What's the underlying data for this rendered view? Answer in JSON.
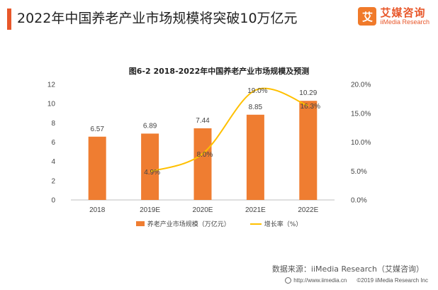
{
  "header": {
    "title": "2022年中国养老产业市场规模将突破10万亿元",
    "logo_mark": "艾",
    "logo_cn": "艾媒咨询",
    "logo_en": "iiMedia Research"
  },
  "chart_data": {
    "type": "bar",
    "title": "图6-2 2018-2022年中国养老产业市场规模及预测",
    "categories": [
      "2018",
      "2019E",
      "2020E",
      "2021E",
      "2022E"
    ],
    "series": [
      {
        "name": "养老产业市场规模（万亿元）",
        "type": "bar",
        "axis": "left",
        "values": [
          6.57,
          6.89,
          7.44,
          8.85,
          10.29
        ],
        "color": "#ef7d31"
      },
      {
        "name": "增长率（%）",
        "type": "line",
        "axis": "right",
        "values": [
          null,
          4.9,
          8.0,
          19.0,
          16.3
        ],
        "labels": [
          "",
          "4.9%",
          "8.0%",
          "19.0%",
          "16.3%"
        ],
        "color": "#ffc000"
      }
    ],
    "left_axis": {
      "min": 0,
      "max": 12,
      "ticks": [
        "0",
        "2",
        "4",
        "6",
        "8",
        "10",
        "12"
      ]
    },
    "right_axis": {
      "min": 0,
      "max": 20,
      "ticks": [
        "0.0%",
        "5.0%",
        "10.0%",
        "15.0%",
        "20.0%"
      ]
    },
    "bar_labels": [
      "6.57",
      "6.89",
      "7.44",
      "8.85",
      "10.29"
    ],
    "grid": false,
    "legend_position": "bottom"
  },
  "source": "数据来源：iiMedia Research（艾媒咨询）",
  "footer": {
    "url": "http://www.iimedia.cn",
    "copyright": "©2019  iiMedia Research  Inc"
  }
}
